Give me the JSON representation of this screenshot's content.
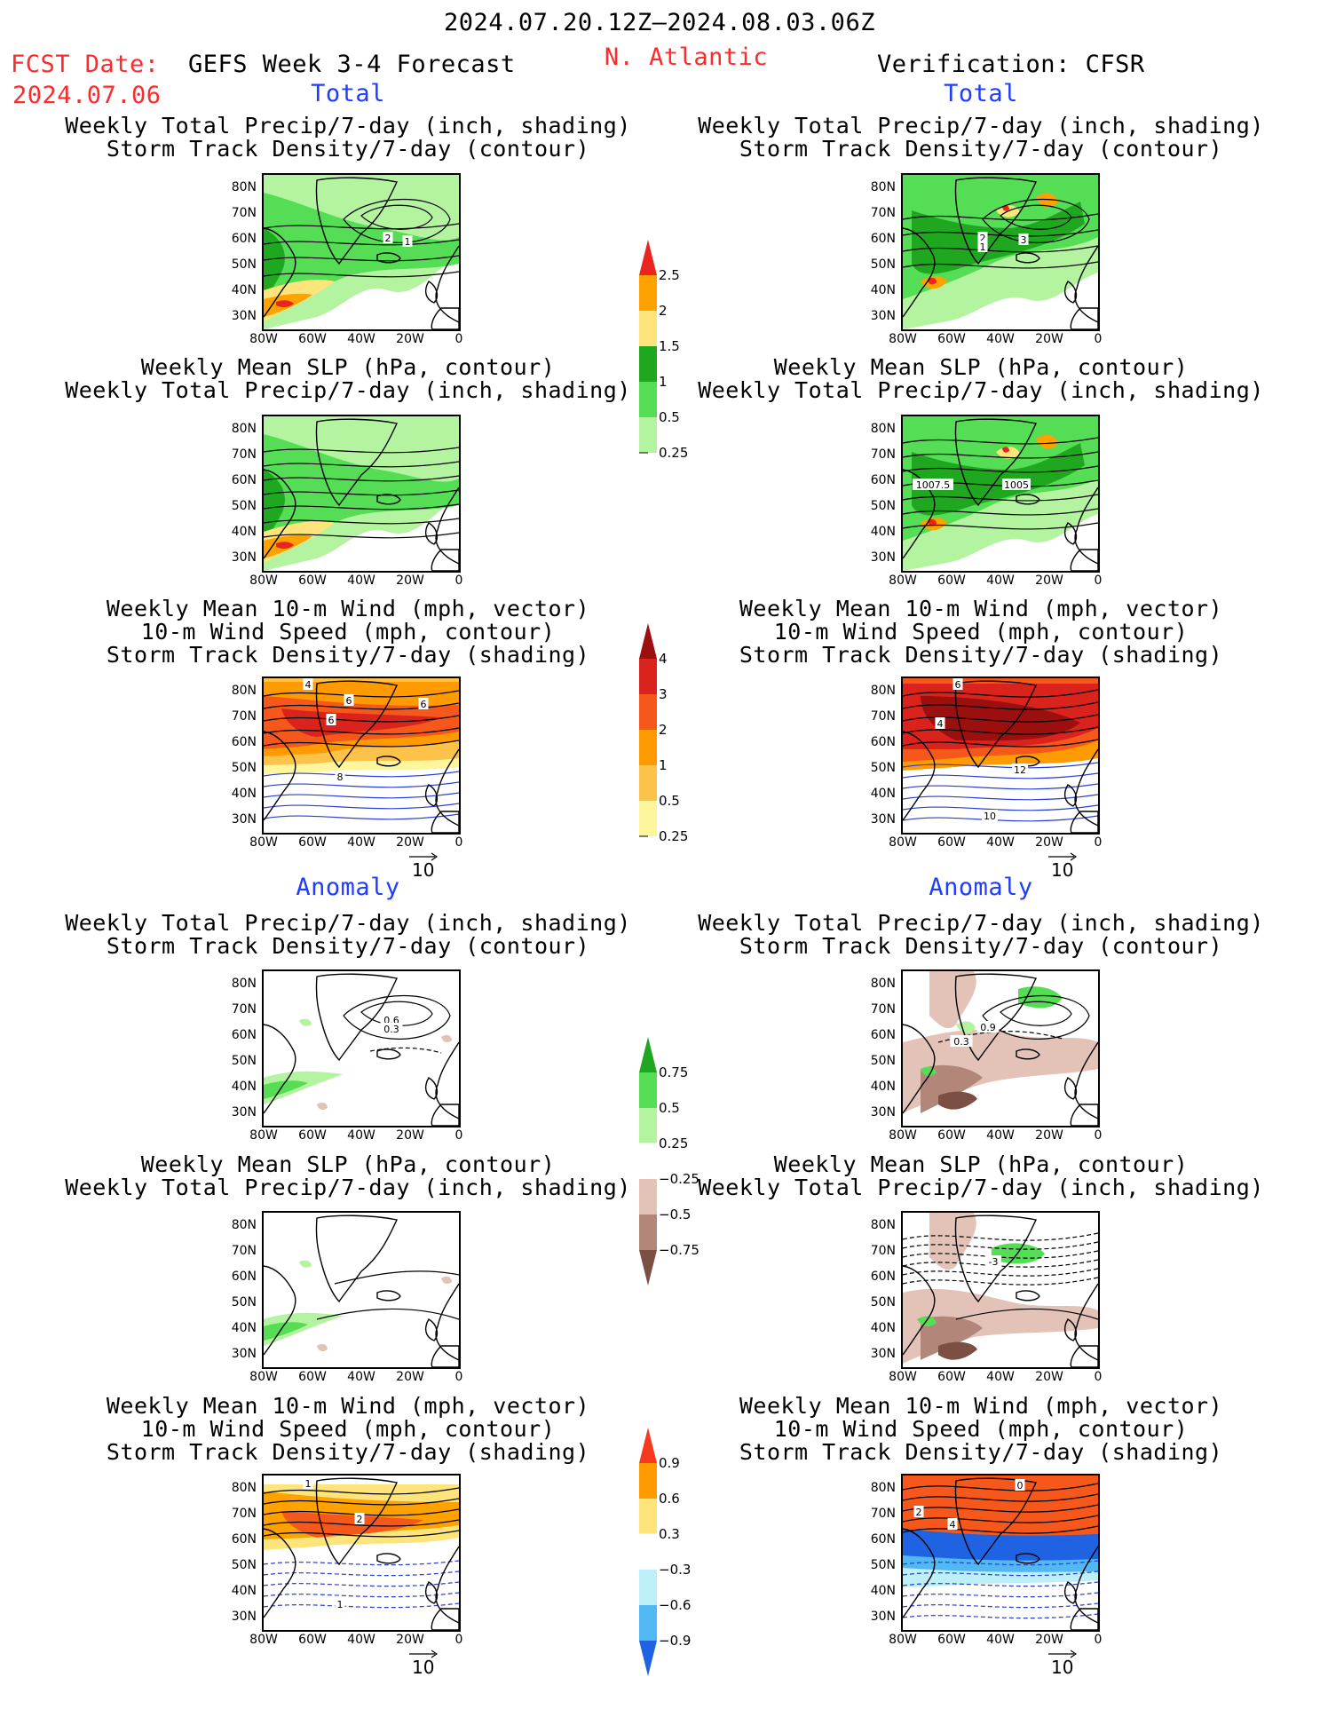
{
  "header": {
    "date_range": "2024.07.20.12Z–2024.08.03.06Z",
    "fcst_date_label": "FCST Date:",
    "fcst_date_value": "2024.07.06",
    "forecast_title": "GEFS Week 3-4 Forecast",
    "region": "N. Atlantic",
    "verification": "Verification: CFSR"
  },
  "section_labels": {
    "total": "Total",
    "anomaly": "Anomaly"
  },
  "panel_titles": {
    "precip_storm": [
      "Weekly Total Precip/7-day (inch, shading)",
      "Storm Track Density/7-day (contour)"
    ],
    "slp_precip": [
      "Weekly Mean SLP (hPa, contour)",
      "Weekly Total Precip/7-day (inch, shading)"
    ],
    "wind_storm": [
      "Weekly Mean 10-m Wind (mph, vector)",
      "10-m Wind Speed (mph, contour)",
      "Storm Track Density/7-day (shading)"
    ]
  },
  "axis": {
    "lat_ticks": [
      "80N",
      "70N",
      "60N",
      "50N",
      "40N",
      "30N"
    ],
    "lon_ticks": [
      "80W",
      "60W",
      "40W",
      "20W",
      "0"
    ]
  },
  "vector_reference": "10",
  "colorbars": {
    "precip_total": {
      "labels": [
        "2.5",
        "2",
        "1.5",
        "1",
        "0.5",
        "0.25"
      ],
      "colors": [
        "#e8261e",
        "#ffa200",
        "#fde57b",
        "#1fa81f",
        "#55dd55",
        "#b4f4a0"
      ]
    },
    "storm_total": {
      "labels": [
        "4",
        "3",
        "2",
        "1",
        "0.5",
        "0.25"
      ],
      "colors": [
        "#9c0f0f",
        "#d9231c",
        "#f6581c",
        "#ff9a00",
        "#fdc24a",
        "#fff59c"
      ]
    },
    "precip_anom": {
      "labels": [
        "0.75",
        "0.5",
        "0.25",
        "−0.25",
        "−0.5",
        "−0.75"
      ],
      "colors": [
        "#1fa81f",
        "#55dd55",
        "#b4f4a0",
        "#ffffff",
        "#e3c3b8",
        "#b2877a",
        "#7c4f45"
      ]
    },
    "storm_anom": {
      "labels": [
        "0.9",
        "0.6",
        "0.3",
        "−0.3",
        "−0.6",
        "−0.9"
      ],
      "colors": [
        "#f6381c",
        "#ff9a00",
        "#fde57b",
        "#ffffff",
        "#bdeff8",
        "#52b8f3",
        "#1f63e3"
      ]
    }
  },
  "contour_labels": {
    "fc_total_precip": [
      "2",
      "1"
    ],
    "ob_total_precip": [
      "2",
      "3",
      "1"
    ],
    "ob_total_slp": [
      "1007.5",
      "1005"
    ],
    "fc_total_wind": [
      "4",
      "6",
      "6",
      "6",
      "8"
    ],
    "ob_total_wind": [
      "6",
      "4",
      "12",
      "10"
    ],
    "fc_anom_precip": [
      "0.6",
      "0.3"
    ],
    "ob_anom_precip": [
      "0.9",
      "0.3"
    ],
    "ob_anom_slp": [
      "-3"
    ],
    "fc_anom_wind": [
      "1",
      "2",
      "1"
    ],
    "ob_anom_wind": [
      "0",
      "2",
      "4"
    ]
  },
  "colors": {
    "accent_red": "#ff2a2a",
    "accent_blue": "#1f3cff"
  }
}
